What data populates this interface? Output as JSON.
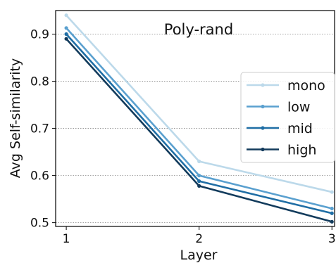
{
  "chart_data": {
    "type": "line",
    "title": "Poly-rand",
    "xlabel": "Layer",
    "ylabel": "Avg Self-similarity",
    "x": [
      1,
      2,
      3
    ],
    "xticks": [
      "1",
      "2",
      "3"
    ],
    "xlim": [
      0.92,
      3.02
    ],
    "ylim": [
      0.492,
      0.95
    ],
    "yticks": [
      "0.5",
      "0.6",
      "0.7",
      "0.8",
      "0.9"
    ],
    "grid": "horizontal-dotted",
    "legend_position": "right",
    "series": [
      {
        "name": "mono",
        "values": [
          0.94,
          0.63,
          0.565
        ],
        "color": "#bcd9ea"
      },
      {
        "name": "low",
        "values": [
          0.913,
          0.6,
          0.53
        ],
        "color": "#5aa0cf"
      },
      {
        "name": "mid",
        "values": [
          0.9,
          0.588,
          0.52
        ],
        "color": "#1f6ea5"
      },
      {
        "name": "high",
        "values": [
          0.89,
          0.578,
          0.502
        ],
        "color": "#123b5c"
      }
    ]
  }
}
